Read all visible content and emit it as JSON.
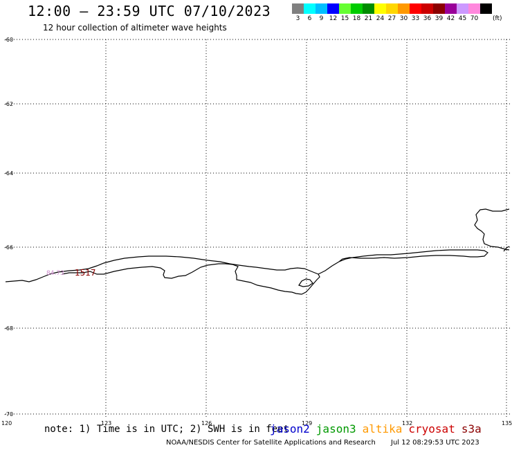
{
  "header": {
    "title": "12:00 – 23:59 UTC 07/10/2023",
    "subtitle": "12 hour collection of altimeter wave heights"
  },
  "legend": {
    "unit": "(ft)",
    "items": [
      {
        "label": "3",
        "color": "#808080"
      },
      {
        "label": "6",
        "color": "#00ffff"
      },
      {
        "label": "9",
        "color": "#00bfff"
      },
      {
        "label": "12",
        "color": "#0000ff"
      },
      {
        "label": "15",
        "color": "#66ff33"
      },
      {
        "label": "18",
        "color": "#00cc00"
      },
      {
        "label": "21",
        "color": "#008c00"
      },
      {
        "label": "24",
        "color": "#ffff00"
      },
      {
        "label": "27",
        "color": "#ffd700"
      },
      {
        "label": "30",
        "color": "#ff9900"
      },
      {
        "label": "33",
        "color": "#ff0000"
      },
      {
        "label": "36",
        "color": "#cc0000"
      },
      {
        "label": "39",
        "color": "#8b0000"
      },
      {
        "label": "42",
        "color": "#990099"
      },
      {
        "label": "45",
        "color": "#cc99ff"
      },
      {
        "label": "70",
        "color": "#ff88dd"
      },
      {
        "label": "",
        "color": "#000000"
      }
    ]
  },
  "map": {
    "lat_labels": [
      "-60",
      "-62",
      "-64",
      "-66",
      "-68",
      "-70"
    ],
    "lon_labels": [
      "120",
      "123",
      "126",
      "129",
      "132",
      "135"
    ],
    "annotations": [
      {
        "text": "84.73",
        "color": "#cc88cc"
      },
      {
        "text": "1517",
        "color": "#8b0000"
      }
    ]
  },
  "footer": {
    "note": "note: 1) Time is in UTC; 2) SWH is in feet",
    "satellites": [
      {
        "name": "jason2",
        "color": "#0000cc"
      },
      {
        "name": "jason3",
        "color": "#009900"
      },
      {
        "name": "altika",
        "color": "#ff9900"
      },
      {
        "name": "cryosat",
        "color": "#cc0000"
      },
      {
        "name": "s3a",
        "color": "#8b0000"
      }
    ],
    "credit": "NOAA/NESDIS Center for Satellite Applications and Research",
    "generated": "Jul 12 08:29:53 UTC 2023"
  }
}
